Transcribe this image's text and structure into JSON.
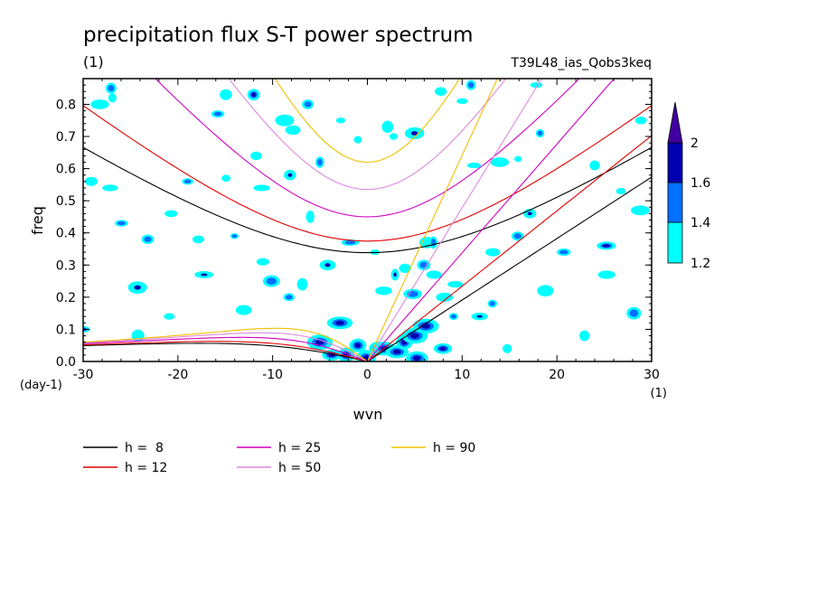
{
  "chart_data": {
    "type": "line",
    "title": "precipitation flux S-T power spectrum",
    "subtitle_left": "(1)",
    "subtitle_right": "T39L48_ias_Qobs3keq",
    "xlabel": "wvn",
    "ylabel": "freq",
    "x_unit": "(1)",
    "y_unit": "(day-1)",
    "xlim": [
      -30,
      30
    ],
    "ylim": [
      0,
      0.88
    ],
    "x_ticks": [
      -30,
      -20,
      -10,
      0,
      10,
      20,
      30
    ],
    "y_ticks": [
      0.0,
      0.1,
      0.2,
      0.3,
      0.4,
      0.5,
      0.6,
      0.7,
      0.8
    ],
    "x_tick_labels": [
      "-30",
      "-20",
      "-10",
      "0",
      "10",
      "20",
      "30"
    ],
    "y_tick_labels": [
      "0.0",
      "0.1",
      "0.2",
      "0.3",
      "0.4",
      "0.5",
      "0.6",
      "0.7",
      "0.8"
    ],
    "legend_position": "bottom",
    "series": [
      {
        "name": "h =  8",
        "h": 8,
        "color": "#000000"
      },
      {
        "name": "h = 12",
        "h": 12,
        "color": "#e00000"
      },
      {
        "name": "h = 25",
        "h": 25,
        "color": "#d000c0"
      },
      {
        "name": "h = 50",
        "h": 50,
        "color": "#dd88dd"
      },
      {
        "name": "h = 90",
        "h": 90,
        "color": "#f0c000"
      }
    ],
    "curve_families": [
      "Kelvin wave",
      "equatorial Rossby wave n=1",
      "inertio-gravity wave n=1"
    ],
    "colorbar": {
      "levels": [
        1.2,
        1.4,
        1.6,
        2
      ],
      "labels": [
        "1.2",
        "1.4",
        "1.6",
        "2"
      ],
      "colors": [
        "#00ffff",
        "#0070ff",
        "#0000b0",
        "#4000a0"
      ]
    },
    "blobs": [
      [
        -30,
        0.1
      ],
      [
        -29,
        0.56
      ],
      [
        -28,
        0.8
      ],
      [
        -27,
        0.85
      ],
      [
        -27,
        0.82
      ],
      [
        -27,
        0.54
      ],
      [
        -26,
        0.43
      ],
      [
        -24,
        0.23
      ],
      [
        -24,
        0.08
      ],
      [
        -23,
        0.38
      ],
      [
        -21,
        0.14
      ],
      [
        -21,
        0.46
      ],
      [
        -19,
        0.56
      ],
      [
        -18,
        0.38
      ],
      [
        -17,
        0.27
      ],
      [
        -16,
        0.77
      ],
      [
        -15,
        0.83
      ],
      [
        -15,
        0.57
      ],
      [
        -14,
        0.39
      ],
      [
        -13,
        0.16
      ],
      [
        -12,
        0.64
      ],
      [
        -12,
        0.83
      ],
      [
        -11,
        0.31
      ],
      [
        -11,
        0.54
      ],
      [
        -10,
        0.25
      ],
      [
        -9,
        0.75
      ],
      [
        -8,
        0.72
      ],
      [
        -8,
        0.2
      ],
      [
        -8,
        0.58
      ],
      [
        -7,
        0.24
      ],
      [
        -6,
        0.8
      ],
      [
        -6,
        0.45
      ],
      [
        -5,
        0.06
      ],
      [
        -5,
        0.62
      ],
      [
        -4,
        0.02
      ],
      [
        -4,
        0.3
      ],
      [
        -3,
        0.12
      ],
      [
        -3,
        0.75
      ],
      [
        -2,
        0.02
      ],
      [
        -2,
        0.37
      ],
      [
        -1,
        0.69
      ],
      [
        -1,
        0.05
      ],
      [
        0,
        0.01
      ],
      [
        1,
        0.34
      ],
      [
        1,
        0.04
      ],
      [
        2,
        0.04
      ],
      [
        2,
        0.22
      ],
      [
        2,
        0.73
      ],
      [
        3,
        0.03
      ],
      [
        3,
        0.27
      ],
      [
        3,
        0.7
      ],
      [
        4,
        0.06
      ],
      [
        4,
        0.29
      ],
      [
        5,
        0.01
      ],
      [
        5,
        0.21
      ],
      [
        5,
        0.08
      ],
      [
        5,
        0.71
      ],
      [
        6,
        0.3
      ],
      [
        6,
        0.11
      ],
      [
        6,
        0.37
      ],
      [
        7,
        0.37
      ],
      [
        7,
        0.27
      ],
      [
        8,
        0.2
      ],
      [
        8,
        0.04
      ],
      [
        8,
        0.84
      ],
      [
        9,
        0.24
      ],
      [
        9,
        0.14
      ],
      [
        10,
        0.81
      ],
      [
        11,
        0.61
      ],
      [
        11,
        0.86
      ],
      [
        12,
        0.14
      ],
      [
        13,
        0.34
      ],
      [
        13,
        0.18
      ],
      [
        14,
        0.62
      ],
      [
        15,
        0.04
      ],
      [
        16,
        0.39
      ],
      [
        16,
        0.63
      ],
      [
        17,
        0.46
      ],
      [
        18,
        0.71
      ],
      [
        18,
        0.86
      ],
      [
        19,
        0.22
      ],
      [
        21,
        0.34
      ],
      [
        23,
        0.08
      ],
      [
        24,
        0.61
      ],
      [
        25,
        0.36
      ],
      [
        25,
        0.27
      ],
      [
        27,
        0.53
      ],
      [
        28,
        0.15
      ],
      [
        29,
        0.75
      ],
      [
        29,
        0.47
      ]
    ]
  }
}
